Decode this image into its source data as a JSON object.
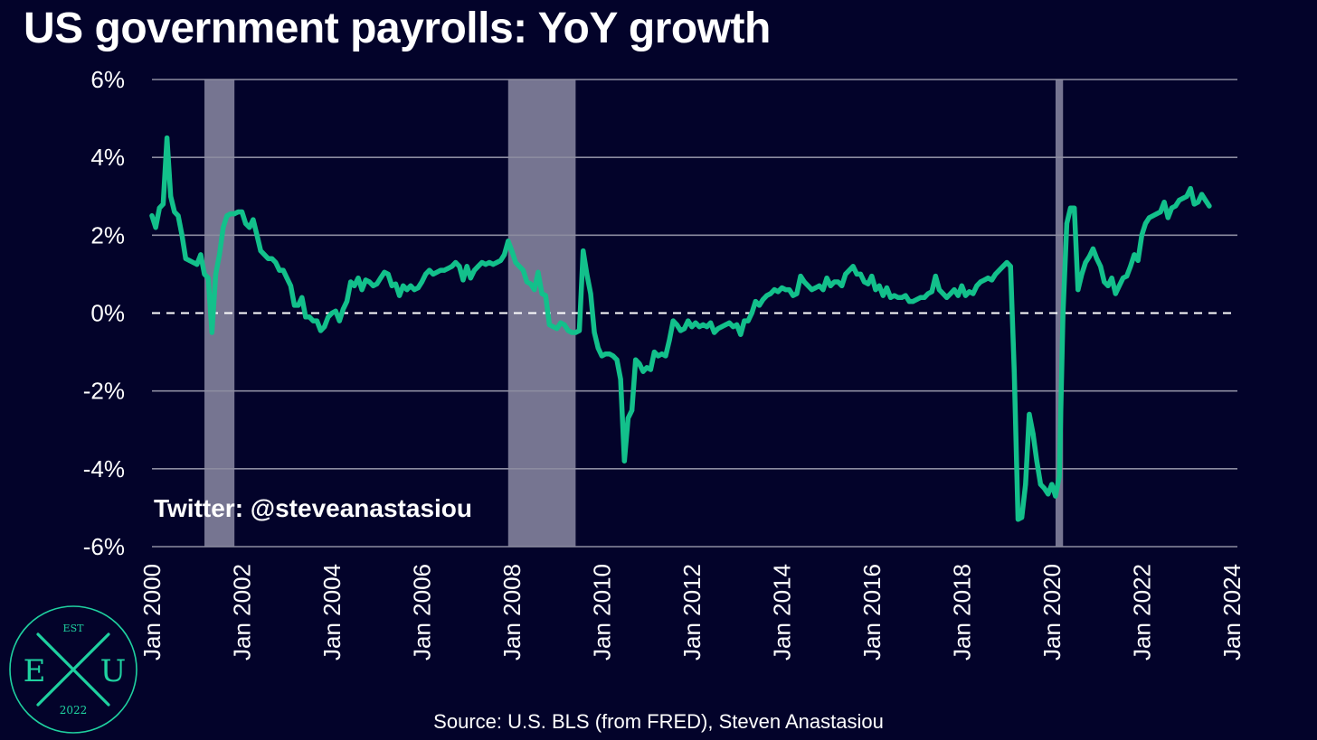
{
  "title": "US government payrolls: YoY growth",
  "source": "Source: U.S. BLS (from FRED), Steven Anastasiou",
  "logo": {
    "top": "EST",
    "left": "E",
    "right": "U",
    "bottom": "2022",
    "color": "#1fd1a0"
  },
  "colors": {
    "background": "#03032a",
    "line": "#13c08b",
    "recession": "#8b8aa3",
    "grid": "#8c8ca0"
  },
  "chart_data": {
    "type": "line",
    "title": "US government payrolls: YoY growth",
    "xlabel": "",
    "ylabel": "",
    "x_ticks": [
      "Jan 2000",
      "Jan 2002",
      "Jan 2004",
      "Jan 2006",
      "Jan 2008",
      "Jan 2010",
      "Jan 2012",
      "Jan 2014",
      "Jan 2016",
      "Jan 2018",
      "Jan 2020",
      "Jan 2022",
      "Jan 2024"
    ],
    "y_ticks": [
      "6%",
      "4%",
      "2%",
      "0%",
      "-2%",
      "-4%",
      "-6%"
    ],
    "ylim": [
      -6,
      6
    ],
    "xlim": [
      "2000-01",
      "2024-05"
    ],
    "zero_line": "dashed",
    "grid": "horizontal",
    "recessions": [
      {
        "start": "2001-03",
        "end": "2001-11"
      },
      {
        "start": "2007-12",
        "end": "2009-06"
      },
      {
        "start": "2020-02",
        "end": "2020-04"
      }
    ],
    "annotation": "Twitter: @steveanastasiou",
    "series": [
      {
        "points": [
          [
            "2000-01",
            2.5
          ],
          [
            "2000-02",
            2.2
          ],
          [
            "2000-03",
            2.7
          ],
          [
            "2000-04",
            2.8
          ],
          [
            "2000-05",
            4.5
          ],
          [
            "2000-06",
            3.0
          ],
          [
            "2000-07",
            2.6
          ],
          [
            "2000-08",
            2.5
          ],
          [
            "2000-09",
            2.0
          ],
          [
            "2000-10",
            1.4
          ],
          [
            "2000-11",
            1.35
          ],
          [
            "2000-12",
            1.3
          ],
          [
            "2001-01",
            1.25
          ],
          [
            "2001-02",
            1.5
          ],
          [
            "2001-03",
            1.0
          ],
          [
            "2001-04",
            0.9
          ],
          [
            "2001-05",
            -0.5
          ],
          [
            "2001-06",
            1.0
          ],
          [
            "2001-07",
            1.5
          ],
          [
            "2001-08",
            2.2
          ],
          [
            "2001-09",
            2.5
          ],
          [
            "2001-10",
            2.55
          ],
          [
            "2001-11",
            2.55
          ],
          [
            "2001-12",
            2.6
          ],
          [
            "2002-01",
            2.6
          ],
          [
            "2002-02",
            2.3
          ],
          [
            "2002-03",
            2.2
          ],
          [
            "2002-04",
            2.4
          ],
          [
            "2002-05",
            2.0
          ],
          [
            "2002-06",
            1.6
          ],
          [
            "2002-07",
            1.5
          ],
          [
            "2002-08",
            1.4
          ],
          [
            "2002-09",
            1.4
          ],
          [
            "2002-10",
            1.3
          ],
          [
            "2002-11",
            1.1
          ],
          [
            "2002-12",
            1.1
          ],
          [
            "2003-01",
            0.9
          ],
          [
            "2003-02",
            0.7
          ],
          [
            "2003-03",
            0.2
          ],
          [
            "2003-04",
            0.2
          ],
          [
            "2003-05",
            0.4
          ],
          [
            "2003-06",
            -0.1
          ],
          [
            "2003-07",
            -0.1
          ],
          [
            "2003-08",
            -0.2
          ],
          [
            "2003-09",
            -0.2
          ],
          [
            "2003-10",
            -0.45
          ],
          [
            "2003-11",
            -0.35
          ],
          [
            "2003-12",
            -0.1
          ],
          [
            "2004-01",
            0.0
          ],
          [
            "2004-02",
            0.05
          ],
          [
            "2004-03",
            -0.2
          ],
          [
            "2004-04",
            0.1
          ],
          [
            "2004-05",
            0.3
          ],
          [
            "2004-06",
            0.8
          ],
          [
            "2004-07",
            0.7
          ],
          [
            "2004-08",
            0.9
          ],
          [
            "2004-09",
            0.6
          ],
          [
            "2004-10",
            0.85
          ],
          [
            "2004-11",
            0.8
          ],
          [
            "2004-12",
            0.7
          ],
          [
            "2005-01",
            0.75
          ],
          [
            "2005-02",
            0.9
          ],
          [
            "2005-03",
            1.05
          ],
          [
            "2005-04",
            1.0
          ],
          [
            "2005-05",
            0.7
          ],
          [
            "2005-06",
            0.75
          ],
          [
            "2005-07",
            0.45
          ],
          [
            "2005-08",
            0.7
          ],
          [
            "2005-09",
            0.6
          ],
          [
            "2005-10",
            0.7
          ],
          [
            "2005-11",
            0.6
          ],
          [
            "2005-12",
            0.65
          ],
          [
            "2006-01",
            0.8
          ],
          [
            "2006-02",
            1.0
          ],
          [
            "2006-03",
            1.1
          ],
          [
            "2006-04",
            1.0
          ],
          [
            "2006-05",
            1.05
          ],
          [
            "2006-06",
            1.1
          ],
          [
            "2006-07",
            1.1
          ],
          [
            "2006-08",
            1.15
          ],
          [
            "2006-09",
            1.2
          ],
          [
            "2006-10",
            1.3
          ],
          [
            "2006-11",
            1.2
          ],
          [
            "2006-12",
            0.85
          ],
          [
            "2007-01",
            1.2
          ],
          [
            "2007-02",
            0.9
          ],
          [
            "2007-03",
            1.1
          ],
          [
            "2007-04",
            1.2
          ],
          [
            "2007-05",
            1.3
          ],
          [
            "2007-06",
            1.25
          ],
          [
            "2007-07",
            1.3
          ],
          [
            "2007-08",
            1.25
          ],
          [
            "2007-09",
            1.3
          ],
          [
            "2007-10",
            1.35
          ],
          [
            "2007-11",
            1.5
          ],
          [
            "2007-12",
            1.85
          ],
          [
            "2008-01",
            1.6
          ],
          [
            "2008-02",
            1.3
          ],
          [
            "2008-03",
            1.2
          ],
          [
            "2008-04",
            1.1
          ],
          [
            "2008-05",
            0.8
          ],
          [
            "2008-06",
            0.75
          ],
          [
            "2008-07",
            0.6
          ],
          [
            "2008-08",
            1.05
          ],
          [
            "2008-09",
            0.5
          ],
          [
            "2008-10",
            0.45
          ],
          [
            "2008-11",
            -0.3
          ],
          [
            "2008-12",
            -0.35
          ],
          [
            "2009-01",
            -0.4
          ],
          [
            "2009-02",
            -0.25
          ],
          [
            "2009-03",
            -0.3
          ],
          [
            "2009-04",
            -0.45
          ],
          [
            "2009-05",
            -0.5
          ],
          [
            "2009-06",
            -0.5
          ],
          [
            "2009-07",
            -0.45
          ],
          [
            "2009-08",
            1.6
          ],
          [
            "2009-09",
            1.0
          ],
          [
            "2009-10",
            0.5
          ],
          [
            "2009-11",
            -0.5
          ],
          [
            "2009-12",
            -0.9
          ],
          [
            "2010-01",
            -1.1
          ],
          [
            "2010-02",
            -1.05
          ],
          [
            "2010-03",
            -1.05
          ],
          [
            "2010-04",
            -1.1
          ],
          [
            "2010-05",
            -1.2
          ],
          [
            "2010-06",
            -1.7
          ],
          [
            "2010-07",
            -3.8
          ],
          [
            "2010-08",
            -2.7
          ],
          [
            "2010-09",
            -2.5
          ],
          [
            "2010-10",
            -1.2
          ],
          [
            "2010-11",
            -1.3
          ],
          [
            "2010-12",
            -1.5
          ],
          [
            "2011-01",
            -1.4
          ],
          [
            "2011-02",
            -1.45
          ],
          [
            "2011-03",
            -1.0
          ],
          [
            "2011-04",
            -1.1
          ],
          [
            "2011-05",
            -1.05
          ],
          [
            "2011-06",
            -1.1
          ],
          [
            "2011-07",
            -0.7
          ],
          [
            "2011-08",
            -0.2
          ],
          [
            "2011-09",
            -0.3
          ],
          [
            "2011-10",
            -0.45
          ],
          [
            "2011-11",
            -0.4
          ],
          [
            "2011-12",
            -0.2
          ],
          [
            "2012-01",
            -0.35
          ],
          [
            "2012-02",
            -0.25
          ],
          [
            "2012-03",
            -0.35
          ],
          [
            "2012-04",
            -0.3
          ],
          [
            "2012-05",
            -0.35
          ],
          [
            "2012-06",
            -0.25
          ],
          [
            "2012-07",
            -0.5
          ],
          [
            "2012-08",
            -0.4
          ],
          [
            "2012-09",
            -0.35
          ],
          [
            "2012-10",
            -0.3
          ],
          [
            "2012-11",
            -0.25
          ],
          [
            "2012-12",
            -0.35
          ],
          [
            "2013-01",
            -0.3
          ],
          [
            "2013-02",
            -0.55
          ],
          [
            "2013-03",
            -0.2
          ],
          [
            "2013-04",
            -0.2
          ],
          [
            "2013-05",
            0.0
          ],
          [
            "2013-06",
            0.3
          ],
          [
            "2013-07",
            0.2
          ],
          [
            "2013-08",
            0.35
          ],
          [
            "2013-09",
            0.45
          ],
          [
            "2013-10",
            0.5
          ],
          [
            "2013-11",
            0.6
          ],
          [
            "2013-12",
            0.55
          ],
          [
            "2014-01",
            0.65
          ],
          [
            "2014-02",
            0.6
          ],
          [
            "2014-03",
            0.6
          ],
          [
            "2014-04",
            0.45
          ],
          [
            "2014-05",
            0.5
          ],
          [
            "2014-06",
            0.95
          ],
          [
            "2014-07",
            0.8
          ],
          [
            "2014-08",
            0.7
          ],
          [
            "2014-09",
            0.6
          ],
          [
            "2014-10",
            0.65
          ],
          [
            "2014-11",
            0.7
          ],
          [
            "2014-12",
            0.6
          ],
          [
            "2015-01",
            0.9
          ],
          [
            "2015-02",
            0.7
          ],
          [
            "2015-03",
            0.8
          ],
          [
            "2015-04",
            0.8
          ],
          [
            "2015-05",
            0.7
          ],
          [
            "2015-06",
            1.0
          ],
          [
            "2015-07",
            1.1
          ],
          [
            "2015-08",
            1.2
          ],
          [
            "2015-09",
            1.0
          ],
          [
            "2015-10",
            1.0
          ],
          [
            "2015-11",
            0.8
          ],
          [
            "2015-12",
            0.75
          ],
          [
            "2016-01",
            0.95
          ],
          [
            "2016-02",
            0.6
          ],
          [
            "2016-03",
            0.7
          ],
          [
            "2016-04",
            0.45
          ],
          [
            "2016-05",
            0.65
          ],
          [
            "2016-06",
            0.4
          ],
          [
            "2016-07",
            0.45
          ],
          [
            "2016-08",
            0.4
          ],
          [
            "2016-09",
            0.4
          ],
          [
            "2016-10",
            0.45
          ],
          [
            "2016-11",
            0.3
          ],
          [
            "2016-12",
            0.3
          ],
          [
            "2017-01",
            0.35
          ],
          [
            "2017-02",
            0.4
          ],
          [
            "2017-03",
            0.4
          ],
          [
            "2017-04",
            0.5
          ],
          [
            "2017-05",
            0.55
          ],
          [
            "2017-06",
            0.95
          ],
          [
            "2017-07",
            0.6
          ],
          [
            "2017-08",
            0.5
          ],
          [
            "2017-09",
            0.4
          ],
          [
            "2017-10",
            0.5
          ],
          [
            "2017-11",
            0.6
          ],
          [
            "2017-12",
            0.45
          ],
          [
            "2018-01",
            0.7
          ],
          [
            "2018-02",
            0.45
          ],
          [
            "2018-03",
            0.55
          ],
          [
            "2018-04",
            0.5
          ],
          [
            "2018-05",
            0.7
          ],
          [
            "2018-06",
            0.8
          ],
          [
            "2018-07",
            0.85
          ],
          [
            "2018-08",
            0.9
          ],
          [
            "2018-09",
            0.85
          ],
          [
            "2018-10",
            1.0
          ],
          [
            "2018-11",
            1.1
          ],
          [
            "2018-12",
            1.2
          ],
          [
            "2019-01",
            1.3
          ],
          [
            "2019-02",
            1.2
          ],
          [
            "2019-03",
            -1.5
          ],
          [
            "2019-04",
            -5.3
          ],
          [
            "2019-05",
            -5.25
          ],
          [
            "2019-06",
            -4.4
          ],
          [
            "2019-07",
            -2.6
          ],
          [
            "2019-08",
            -3.1
          ],
          [
            "2019-09",
            -3.8
          ],
          [
            "2019-10",
            -4.4
          ],
          [
            "2019-11",
            -4.5
          ],
          [
            "2019-12",
            -4.65
          ],
          [
            "2020-01",
            -4.4
          ],
          [
            "2020-02",
            -4.7
          ],
          [
            "2020-03",
            -4.2
          ],
          [
            "2020-04",
            0.0
          ],
          [
            "2020-05",
            2.3
          ],
          [
            "2020-06",
            2.7
          ],
          [
            "2020-07",
            2.7
          ],
          [
            "2020-08",
            0.6
          ],
          [
            "2020-09",
            1.0
          ],
          [
            "2020-10",
            1.3
          ],
          [
            "2020-11",
            1.45
          ],
          [
            "2020-12",
            1.65
          ],
          [
            "2021-01",
            1.4
          ],
          [
            "2021-02",
            1.2
          ],
          [
            "2021-03",
            0.8
          ],
          [
            "2021-04",
            0.7
          ],
          [
            "2021-05",
            0.9
          ],
          [
            "2021-06",
            0.5
          ],
          [
            "2021-07",
            0.7
          ],
          [
            "2021-08",
            0.9
          ],
          [
            "2021-09",
            0.95
          ],
          [
            "2021-10",
            1.2
          ],
          [
            "2021-11",
            1.5
          ],
          [
            "2021-12",
            1.35
          ],
          [
            "2022-01",
            2.0
          ],
          [
            "2022-02",
            2.3
          ],
          [
            "2022-03",
            2.45
          ],
          [
            "2022-04",
            2.5
          ],
          [
            "2022-05",
            2.55
          ],
          [
            "2022-06",
            2.6
          ],
          [
            "2022-07",
            2.85
          ],
          [
            "2022-08",
            2.45
          ],
          [
            "2022-09",
            2.7
          ],
          [
            "2022-10",
            2.75
          ],
          [
            "2022-11",
            2.9
          ],
          [
            "2022-12",
            2.95
          ],
          [
            "2023-01",
            3.0
          ],
          [
            "2023-02",
            3.2
          ],
          [
            "2023-03",
            2.8
          ],
          [
            "2023-04",
            2.85
          ],
          [
            "2023-05",
            3.05
          ],
          [
            "2023-06",
            2.9
          ],
          [
            "2023-07",
            2.75
          ]
        ]
      }
    ]
  }
}
